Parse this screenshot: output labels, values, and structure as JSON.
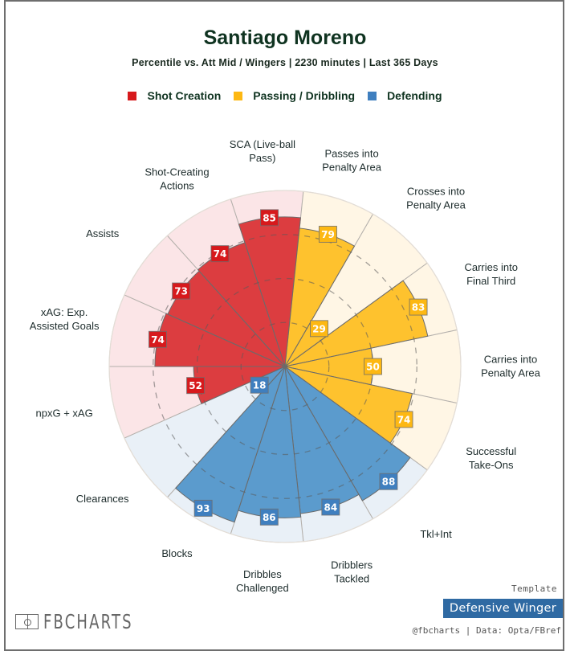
{
  "header": {
    "title": "Santiago Moreno",
    "subtitle": "Percentile vs. Att Mid / Wingers | 2230 minutes | Last 365 Days"
  },
  "legend": [
    {
      "label": "Shot Creation",
      "color": "#d7191c"
    },
    {
      "label": "Passing / Dribbling",
      "color": "#fdb813"
    },
    {
      "label": "Defending",
      "color": "#3f7fbf"
    }
  ],
  "chart_data": {
    "type": "polar-bar",
    "title": "Santiago Moreno",
    "range": [
      0,
      100
    ],
    "gridlines": [
      25,
      50,
      75
    ],
    "start_angle_deg": -18,
    "direction": "clockwise",
    "groups": [
      {
        "name": "Shot Creation",
        "bar_color": "#dc3d40",
        "bg_color": "#fbe5e7",
        "label_bg": "#d7191c"
      },
      {
        "name": "Passing / Dribbling",
        "bar_color": "#fec22e",
        "bg_color": "#fff6e5",
        "label_bg": "#fdb813"
      },
      {
        "name": "Defending",
        "bar_color": "#5b9bcd",
        "bg_color": "#e9f0f7",
        "label_bg": "#3f7fbf"
      }
    ],
    "categories": [
      {
        "label": [
          "SCA (Live-ball",
          "Pass)"
        ],
        "value": 85,
        "group": 0
      },
      {
        "label": [
          "Passes into",
          "Penalty Area"
        ],
        "value": 79,
        "group": 1
      },
      {
        "label": [
          "Crosses into",
          "Penalty Area"
        ],
        "value": 29,
        "group": 1
      },
      {
        "label": [
          "Carries into",
          "Final Third"
        ],
        "value": 83,
        "group": 1
      },
      {
        "label": [
          "Carries into",
          "Penalty Area"
        ],
        "value": 50,
        "group": 1
      },
      {
        "label": [
          "Successful",
          "Take-Ons"
        ],
        "value": 74,
        "group": 1
      },
      {
        "label": [
          "Tkl+Int"
        ],
        "value": 88,
        "group": 2
      },
      {
        "label": [
          "Dribblers",
          "Tackled"
        ],
        "value": 84,
        "group": 2
      },
      {
        "label": [
          "Dribbles",
          "Challenged"
        ],
        "value": 86,
        "group": 2
      },
      {
        "label": [
          "Blocks"
        ],
        "value": 93,
        "group": 2
      },
      {
        "label": [
          "Clearances"
        ],
        "value": 18,
        "group": 2
      },
      {
        "label": [
          "npxG + xAG"
        ],
        "value": 52,
        "group": 0
      },
      {
        "label": [
          "xAG: Exp.",
          "Assisted Goals"
        ],
        "value": 74,
        "group": 0
      },
      {
        "label": [
          "Assists"
        ],
        "value": 73,
        "group": 0
      },
      {
        "label": [
          "Shot-Creating",
          "Actions"
        ],
        "value": 74,
        "group": 0
      }
    ]
  },
  "footer": {
    "logo_text": "FBCHARTS",
    "template_label": "Template",
    "template_name": "Defensive Winger",
    "credit": "@fbcharts | Data: Opta/FBref"
  }
}
